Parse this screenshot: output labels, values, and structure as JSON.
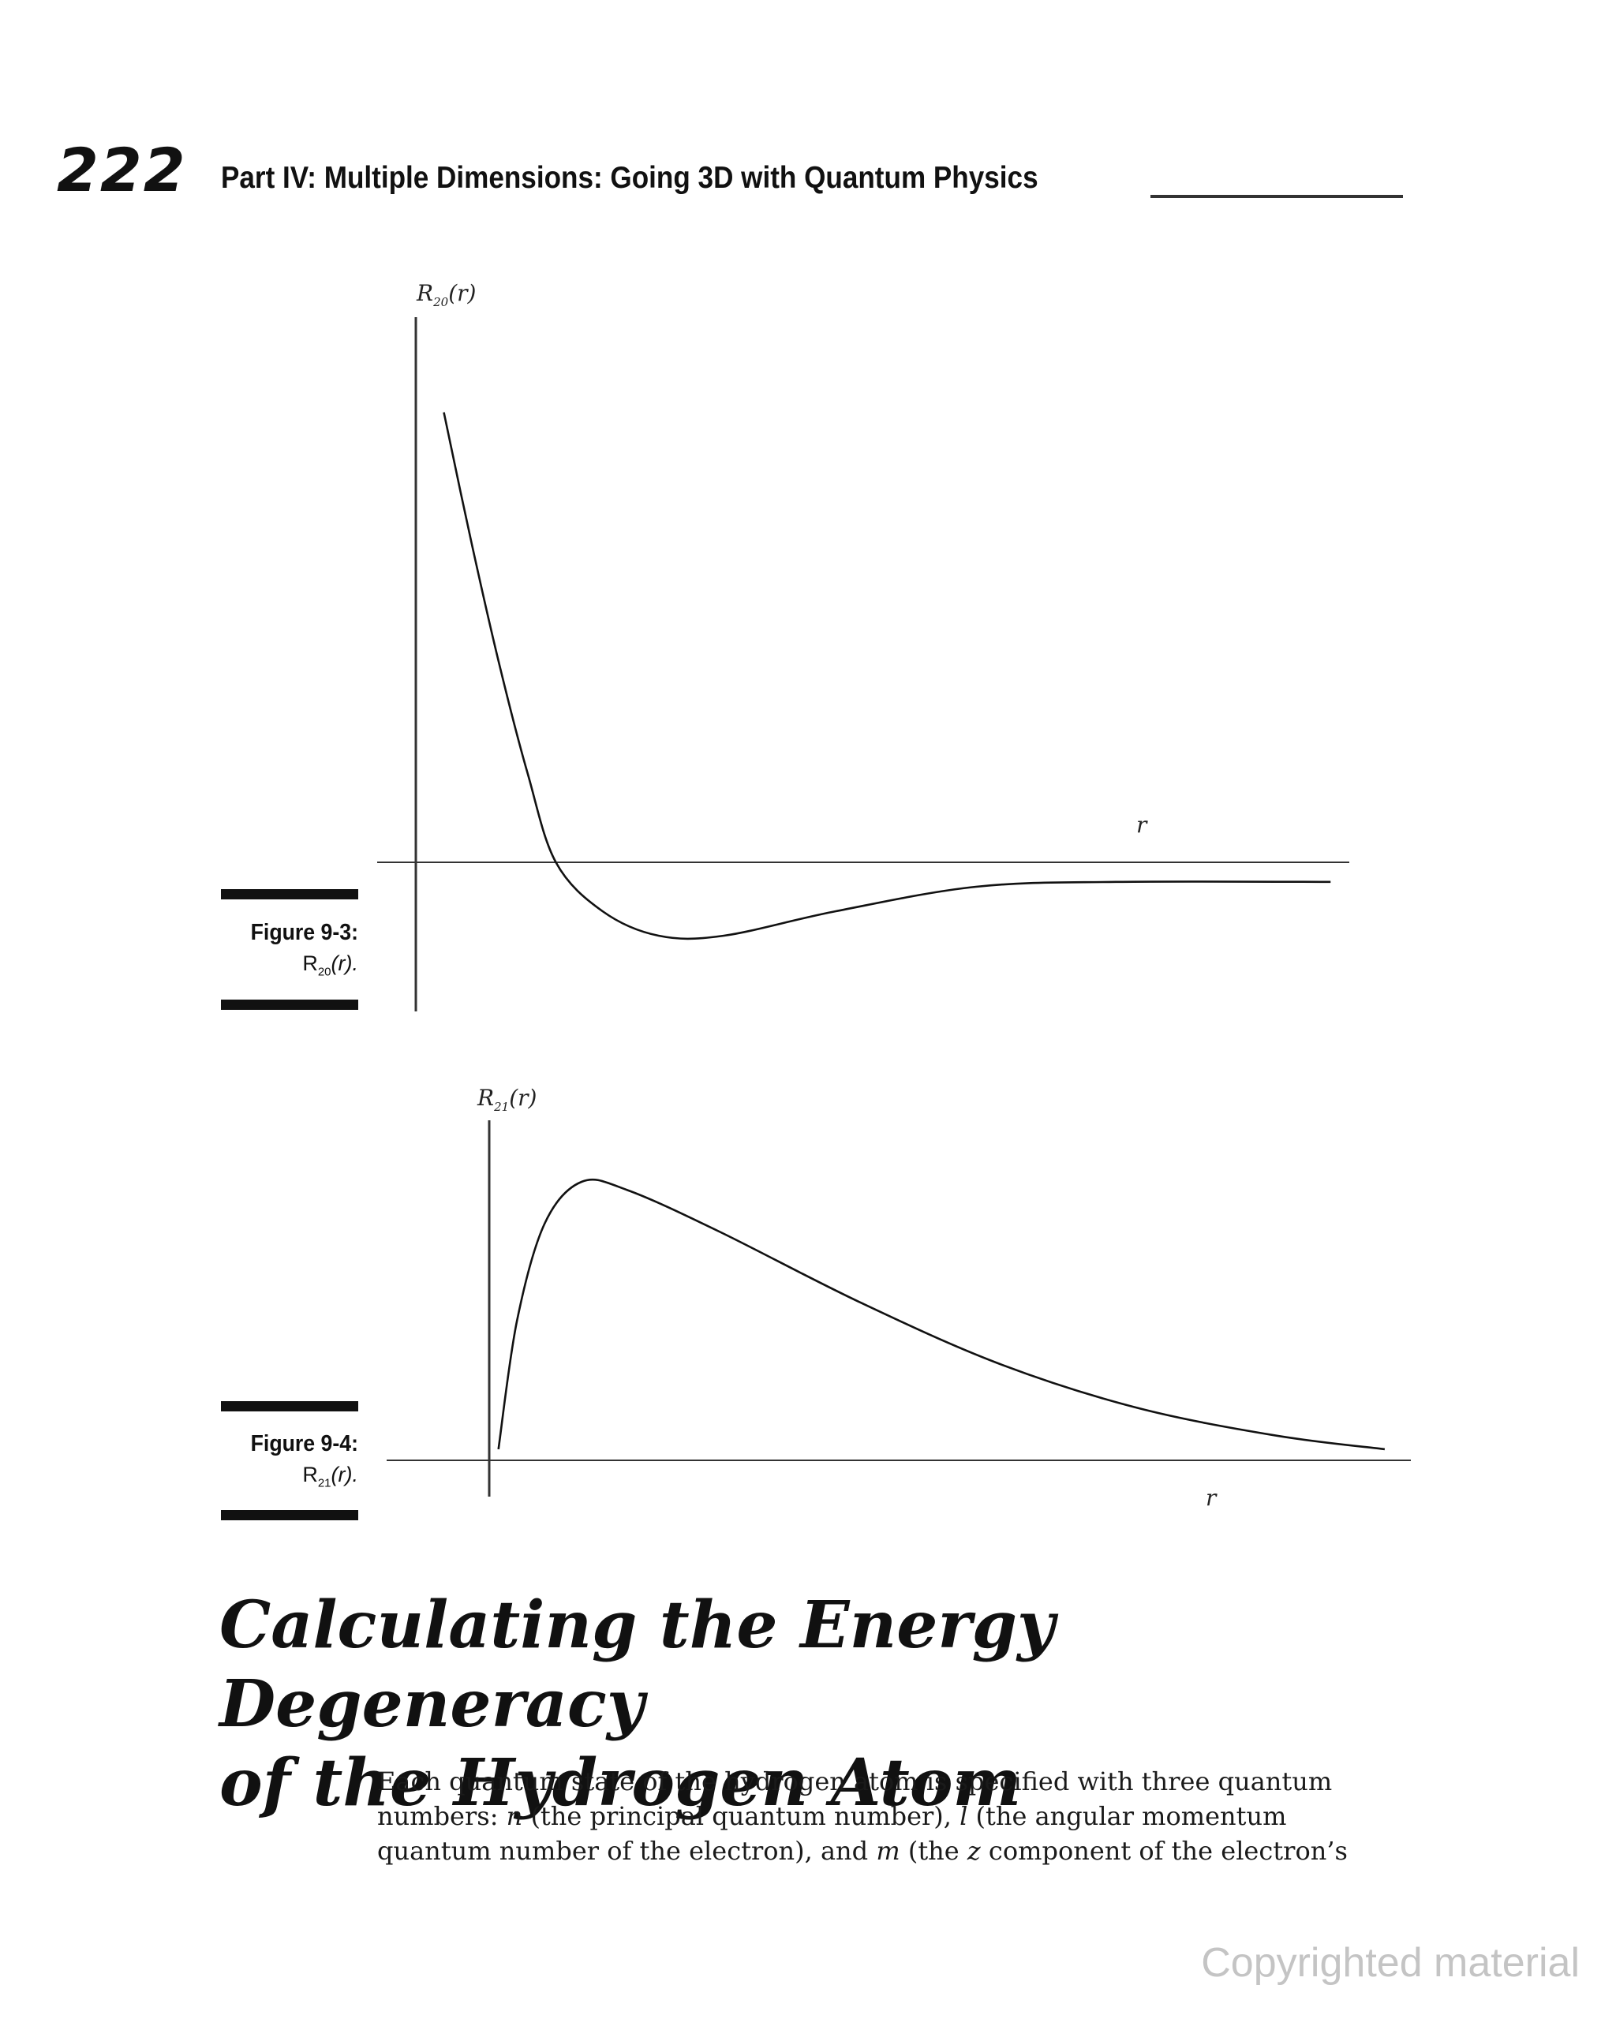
{
  "header": {
    "page_number": "222",
    "running_head": "Part IV: Multiple Dimensions: Going 3D with Quantum Physics"
  },
  "figures": [
    {
      "label": "Figure 9-3:",
      "caption_main": "R",
      "caption_sub": "20",
      "caption_tail": "(r).",
      "y_axis_main": "R",
      "y_axis_sub": "20",
      "y_axis_tail": "(r)",
      "x_axis_label": "r"
    },
    {
      "label": "Figure 9-4:",
      "caption_main": "R",
      "caption_sub": "21",
      "caption_tail": "(r).",
      "y_axis_main": "R",
      "y_axis_sub": "21",
      "y_axis_tail": "(r)",
      "x_axis_label": "r"
    }
  ],
  "chart_data": [
    {
      "type": "line",
      "series": [
        {
          "values": [
            [
              0.03,
              0.92
            ],
            [
              0.06,
              0.65
            ],
            [
              0.09,
              0.4
            ],
            [
              0.12,
              0.18
            ],
            [
              0.15,
              0.0
            ],
            [
              0.2,
              -0.1
            ],
            [
              0.26,
              -0.15
            ],
            [
              0.33,
              -0.15
            ],
            [
              0.45,
              -0.1
            ],
            [
              0.6,
              -0.05
            ],
            [
              0.75,
              -0.04
            ],
            [
              0.98,
              -0.04
            ]
          ]
        }
      ],
      "grid": false
    },
    {
      "type": "line",
      "series": [
        {
          "values": [
            [
              0.01,
              0.04
            ],
            [
              0.03,
              0.5
            ],
            [
              0.06,
              0.85
            ],
            [
              0.1,
              1.0
            ],
            [
              0.15,
              0.97
            ],
            [
              0.25,
              0.82
            ],
            [
              0.4,
              0.57
            ],
            [
              0.55,
              0.35
            ],
            [
              0.7,
              0.19
            ],
            [
              0.85,
              0.09
            ],
            [
              0.97,
              0.04
            ]
          ]
        }
      ],
      "grid": false
    }
  ],
  "section": {
    "heading_line1": "Calculating the Energy Degeneracy",
    "heading_line2": "of the Hydrogen Atom",
    "body_1": "Each quantum state of the hydrogen atom is specified with three quantum numbers: ",
    "var_n": "n",
    "body_2": " (the principal quantum number), ",
    "var_l": "l",
    "body_3": " (the angular momentum quantum number of the electron), and ",
    "var_m": "m",
    "body_4": " (the ",
    "var_z": "z",
    "body_5": " component of the electron’s"
  },
  "watermark": "Copyrighted material"
}
